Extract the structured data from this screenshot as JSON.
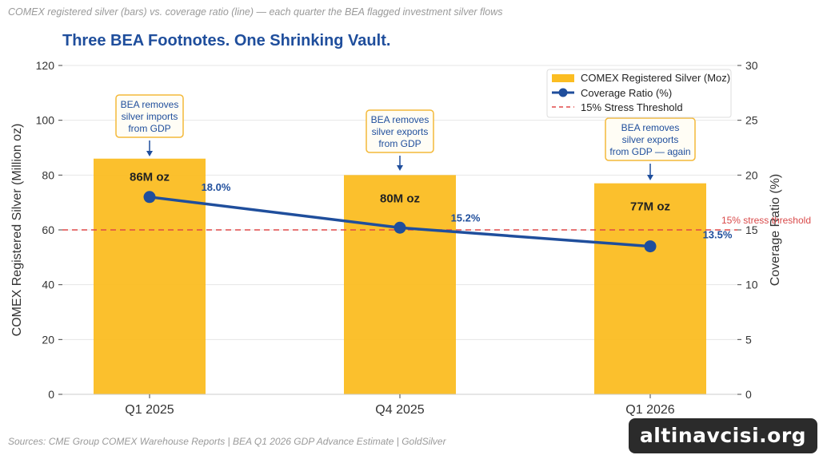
{
  "header": {
    "subtitle": "COMEX registered silver (bars) vs. coverage ratio (line) — each quarter the BEA flagged investment silver flows",
    "title": "Three BEA Footnotes. One Shrinking Vault."
  },
  "footer": {
    "source": "Sources: CME Group COMEX Warehouse Reports  |  BEA Q1 2026 GDP Advance Estimate  |  GoldSilver"
  },
  "watermark": "altinavcisi.org",
  "colors": {
    "bar": "#fbbd22",
    "line": "#1f4e9c",
    "threshold": "#e04848",
    "annotation_border": "#f4b93a"
  },
  "chart_data": {
    "type": "bar",
    "categories": [
      "Q1 2025",
      "Q4 2025",
      "Q1 2026"
    ],
    "series": [
      {
        "name": "COMEX Registered Silver (Moz)",
        "type": "bar",
        "axis": "left",
        "values": [
          86,
          80,
          77
        ],
        "labels": [
          "86M oz",
          "80M oz",
          "77M oz"
        ]
      },
      {
        "name": "Coverage Ratio (%)",
        "type": "line",
        "axis": "right",
        "values": [
          18.0,
          15.2,
          13.5
        ],
        "labels": [
          "18.0%",
          "15.2%",
          "13.5%"
        ]
      }
    ],
    "threshold": {
      "legend": "15% Stress Threshold",
      "label": "15% stress threshold",
      "value": 15
    },
    "annotations": [
      {
        "category": "Q1 2025",
        "lines": [
          "BEA removes",
          "silver imports",
          "from GDP"
        ]
      },
      {
        "category": "Q4 2025",
        "lines": [
          "BEA removes",
          "silver exports",
          "from GDP"
        ]
      },
      {
        "category": "Q1 2026",
        "lines": [
          "BEA removes",
          "silver exports",
          "from GDP — again"
        ]
      }
    ],
    "ylabel": "COMEX Registered Silver (Million oz)",
    "y2label": "Coverage Ratio (%)",
    "ylim": [
      0,
      120
    ],
    "y2lim": [
      0,
      30
    ],
    "yticks": [
      0,
      20,
      40,
      60,
      80,
      100,
      120
    ],
    "y2ticks": [
      0,
      5,
      10,
      15,
      20,
      25,
      30
    ],
    "grid": true,
    "legend_position": "top-right"
  }
}
